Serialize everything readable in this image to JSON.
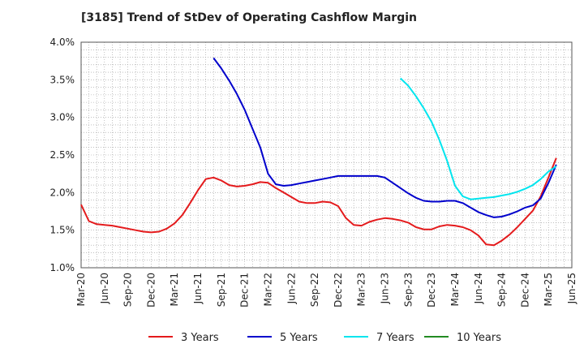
{
  "chart_data": {
    "type": "line",
    "title": "[3185]  Trend of StDev of Operating Cashflow Margin",
    "ylim": [
      1.0,
      4.0
    ],
    "y_ticks": [
      "1.0%",
      "1.5%",
      "2.0%",
      "2.5%",
      "3.0%",
      "3.5%",
      "4.0%"
    ],
    "x_ticks": [
      "Mar-20",
      "Jun-20",
      "Sep-20",
      "Dec-20",
      "Mar-21",
      "Jun-21",
      "Sep-21",
      "Dec-21",
      "Mar-22",
      "Jun-22",
      "Sep-22",
      "Dec-22",
      "Mar-23",
      "Jun-23",
      "Sep-23",
      "Dec-23",
      "Mar-24",
      "Jun-24",
      "Sep-24",
      "Dec-24",
      "Mar-25",
      "Jun-25"
    ],
    "grid": true,
    "legend_position": "bottom",
    "series": [
      {
        "name": "3 Years",
        "color": "#e41a1c",
        "points": [
          [
            "2020-03",
            1.84
          ],
          [
            "2020-04",
            1.62
          ],
          [
            "2020-05",
            1.58
          ],
          [
            "2020-06",
            1.57
          ],
          [
            "2020-07",
            1.56
          ],
          [
            "2020-08",
            1.54
          ],
          [
            "2020-09",
            1.52
          ],
          [
            "2020-10",
            1.5
          ],
          [
            "2020-11",
            1.48
          ],
          [
            "2020-12",
            1.47
          ],
          [
            "2021-01",
            1.48
          ],
          [
            "2021-02",
            1.52
          ],
          [
            "2021-03",
            1.59
          ],
          [
            "2021-04",
            1.7
          ],
          [
            "2021-05",
            1.86
          ],
          [
            "2021-06",
            2.03
          ],
          [
            "2021-07",
            2.18
          ],
          [
            "2021-08",
            2.2
          ],
          [
            "2021-09",
            2.16
          ],
          [
            "2021-10",
            2.1
          ],
          [
            "2021-11",
            2.08
          ],
          [
            "2021-12",
            2.09
          ],
          [
            "2022-01",
            2.11
          ],
          [
            "2022-02",
            2.14
          ],
          [
            "2022-03",
            2.13
          ],
          [
            "2022-04",
            2.06
          ],
          [
            "2022-05",
            2.0
          ],
          [
            "2022-06",
            1.94
          ],
          [
            "2022-07",
            1.88
          ],
          [
            "2022-08",
            1.86
          ],
          [
            "2022-09",
            1.86
          ],
          [
            "2022-10",
            1.88
          ],
          [
            "2022-11",
            1.87
          ],
          [
            "2022-12",
            1.82
          ],
          [
            "2023-01",
            1.66
          ],
          [
            "2023-02",
            1.57
          ],
          [
            "2023-03",
            1.56
          ],
          [
            "2023-04",
            1.61
          ],
          [
            "2023-05",
            1.64
          ],
          [
            "2023-06",
            1.66
          ],
          [
            "2023-07",
            1.65
          ],
          [
            "2023-08",
            1.63
          ],
          [
            "2023-09",
            1.6
          ],
          [
            "2023-10",
            1.54
          ],
          [
            "2023-11",
            1.51
          ],
          [
            "2023-12",
            1.51
          ],
          [
            "2024-01",
            1.55
          ],
          [
            "2024-02",
            1.57
          ],
          [
            "2024-03",
            1.56
          ],
          [
            "2024-04",
            1.54
          ],
          [
            "2024-05",
            1.5
          ],
          [
            "2024-06",
            1.43
          ],
          [
            "2024-07",
            1.31
          ],
          [
            "2024-08",
            1.3
          ],
          [
            "2024-09",
            1.36
          ],
          [
            "2024-10",
            1.44
          ],
          [
            "2024-11",
            1.54
          ],
          [
            "2024-12",
            1.65
          ],
          [
            "2025-01",
            1.76
          ],
          [
            "2025-02",
            1.95
          ],
          [
            "2025-03",
            2.2
          ],
          [
            "2025-04",
            2.46
          ]
        ]
      },
      {
        "name": "5 Years",
        "color": "#0000cc",
        "points": [
          [
            "2021-08",
            3.79
          ],
          [
            "2021-09",
            3.65
          ],
          [
            "2021-10",
            3.49
          ],
          [
            "2021-11",
            3.31
          ],
          [
            "2021-12",
            3.1
          ],
          [
            "2022-01",
            2.85
          ],
          [
            "2022-02",
            2.6
          ],
          [
            "2022-03",
            2.25
          ],
          [
            "2022-04",
            2.11
          ],
          [
            "2022-05",
            2.09
          ],
          [
            "2022-06",
            2.1
          ],
          [
            "2022-07",
            2.12
          ],
          [
            "2022-08",
            2.14
          ],
          [
            "2022-09",
            2.16
          ],
          [
            "2022-10",
            2.18
          ],
          [
            "2022-11",
            2.2
          ],
          [
            "2022-12",
            2.22
          ],
          [
            "2023-01",
            2.22
          ],
          [
            "2023-02",
            2.22
          ],
          [
            "2023-03",
            2.22
          ],
          [
            "2023-04",
            2.22
          ],
          [
            "2023-05",
            2.22
          ],
          [
            "2023-06",
            2.2
          ],
          [
            "2023-07",
            2.13
          ],
          [
            "2023-08",
            2.06
          ],
          [
            "2023-09",
            1.99
          ],
          [
            "2023-10",
            1.93
          ],
          [
            "2023-11",
            1.89
          ],
          [
            "2023-12",
            1.88
          ],
          [
            "2024-01",
            1.88
          ],
          [
            "2024-02",
            1.89
          ],
          [
            "2024-03",
            1.89
          ],
          [
            "2024-04",
            1.86
          ],
          [
            "2024-05",
            1.8
          ],
          [
            "2024-06",
            1.74
          ],
          [
            "2024-07",
            1.7
          ],
          [
            "2024-08",
            1.67
          ],
          [
            "2024-09",
            1.68
          ],
          [
            "2024-10",
            1.71
          ],
          [
            "2024-11",
            1.75
          ],
          [
            "2024-12",
            1.8
          ],
          [
            "2025-01",
            1.83
          ],
          [
            "2025-02",
            1.92
          ],
          [
            "2025-03",
            2.13
          ],
          [
            "2025-04",
            2.37
          ]
        ]
      },
      {
        "name": "7 Years",
        "color": "#00e5ee",
        "points": [
          [
            "2023-08",
            3.52
          ],
          [
            "2023-09",
            3.42
          ],
          [
            "2023-10",
            3.28
          ],
          [
            "2023-11",
            3.12
          ],
          [
            "2023-12",
            2.94
          ],
          [
            "2024-01",
            2.7
          ],
          [
            "2024-02",
            2.42
          ],
          [
            "2024-03",
            2.09
          ],
          [
            "2024-04",
            1.95
          ],
          [
            "2024-05",
            1.91
          ],
          [
            "2024-06",
            1.92
          ],
          [
            "2024-07",
            1.93
          ],
          [
            "2024-08",
            1.94
          ],
          [
            "2024-09",
            1.96
          ],
          [
            "2024-10",
            1.98
          ],
          [
            "2024-11",
            2.01
          ],
          [
            "2024-12",
            2.05
          ],
          [
            "2025-01",
            2.1
          ],
          [
            "2025-02",
            2.18
          ],
          [
            "2025-03",
            2.28
          ],
          [
            "2025-04",
            2.35
          ]
        ]
      },
      {
        "name": "10 Years",
        "color": "#228b22",
        "points": []
      }
    ]
  }
}
